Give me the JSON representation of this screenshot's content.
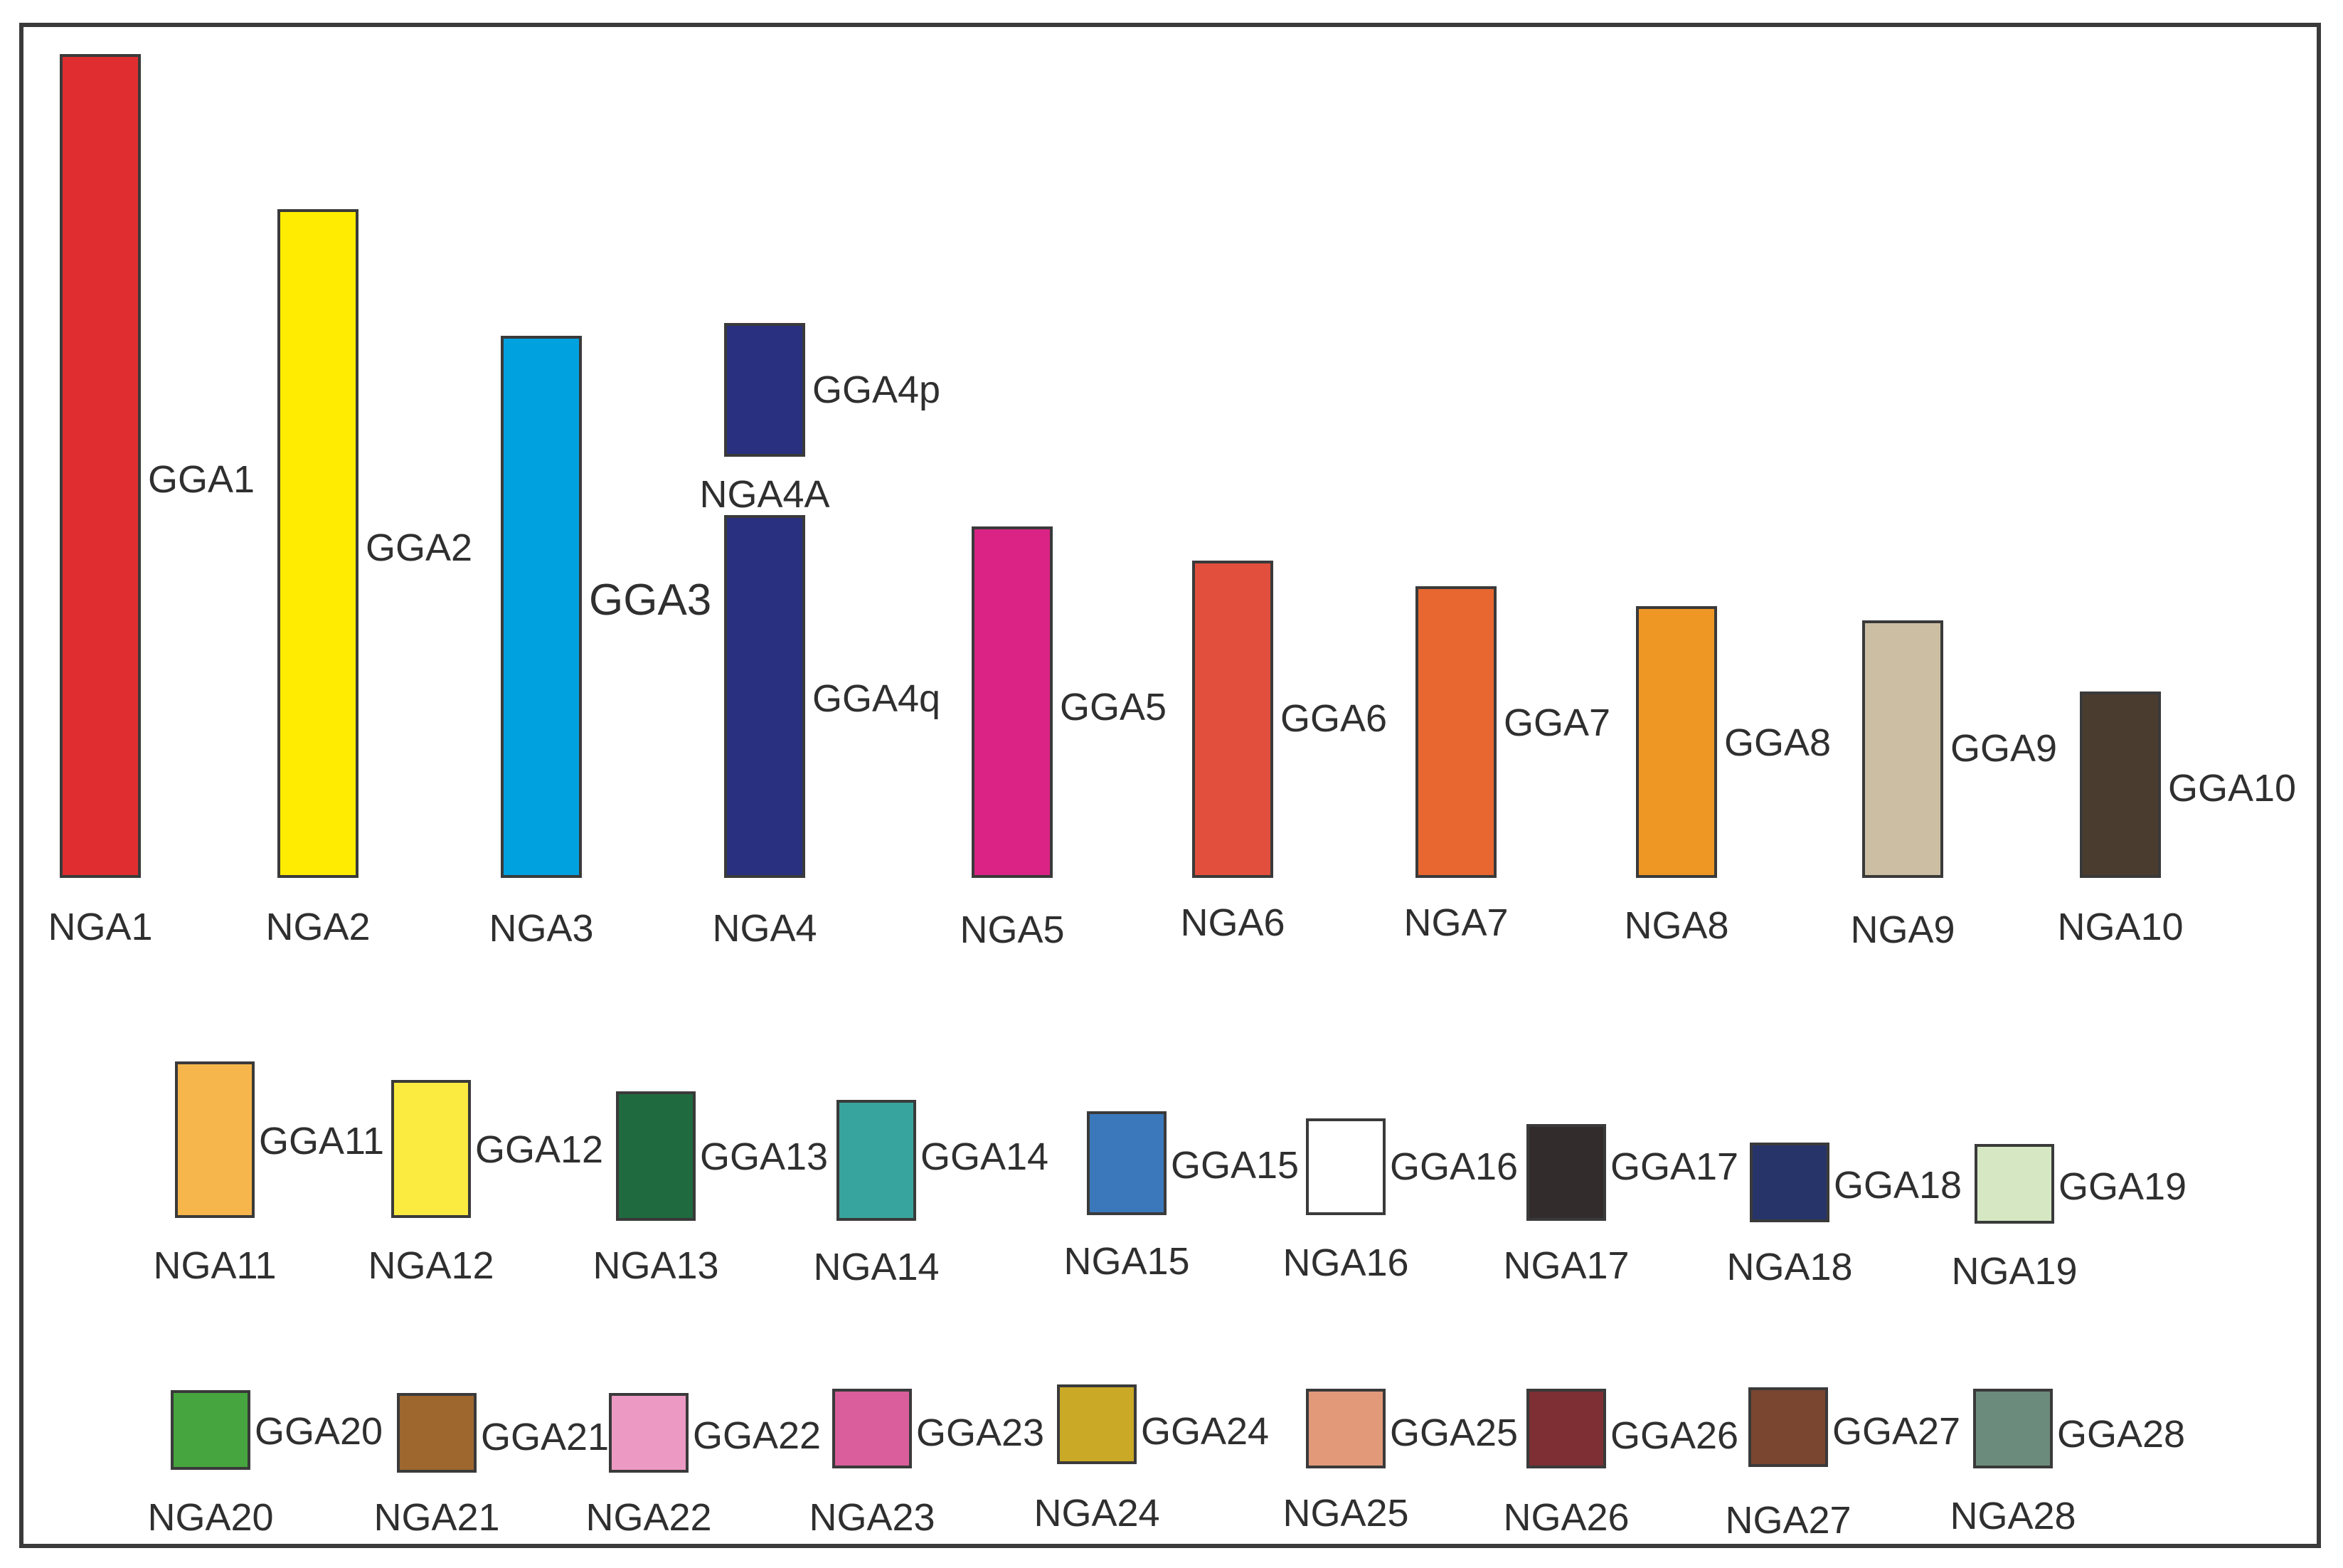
{
  "large_chromosomes": [
    {
      "nga": "NGA1",
      "gga": "GGA1",
      "color": "#e02e30"
    },
    {
      "nga": "NGA2",
      "gga": "GGA2",
      "color": "#ffec00"
    },
    {
      "nga": "NGA3",
      "gga": "GGA3",
      "color": "#00a1df"
    },
    {
      "nga": "NGA4",
      "gga": "GGA4q",
      "color": "#29307f"
    },
    {
      "nga": "NGA5",
      "gga": "GGA5",
      "color": "#da2385"
    },
    {
      "nga": "NGA6",
      "gga": "GGA6",
      "color": "#e24f3d"
    },
    {
      "nga": "NGA7",
      "gga": "GGA7",
      "color": "#e86730"
    },
    {
      "nga": "NGA8",
      "gga": "GGA8",
      "color": "#ef9724"
    },
    {
      "nga": "NGA9",
      "gga": "GGA9",
      "color": "#cbbea3"
    },
    {
      "nga": "NGA10",
      "gga": "GGA10",
      "color": "#4a3c2f"
    }
  ],
  "extra_chromosome": {
    "nga": "NGA4A",
    "gga": "GGA4p",
    "color": "#29307f"
  },
  "small_row_1": [
    {
      "nga": "NGA11",
      "gga": "GGA11",
      "color": "#f6b64c"
    },
    {
      "nga": "NGA12",
      "gga": "GGA12",
      "color": "#fbea40"
    },
    {
      "nga": "NGA13",
      "gga": "GGA13",
      "color": "#1f6b3f"
    },
    {
      "nga": "NGA14",
      "gga": "GGA14",
      "color": "#38a49e"
    },
    {
      "nga": "NGA15",
      "gga": "GGA15",
      "color": "#3b78bb"
    },
    {
      "nga": "NGA16",
      "gga": "GGA16",
      "color": "#ffffff"
    },
    {
      "nga": "NGA17",
      "gga": "GGA17",
      "color": "#322c2c"
    },
    {
      "nga": "NGA18",
      "gga": "GGA18",
      "color": "#27346a"
    },
    {
      "nga": "NGA19",
      "gga": "GGA19",
      "color": "#d5e8c3"
    }
  ],
  "small_row_2": [
    {
      "nga": "NGA20",
      "gga": "GGA20",
      "color": "#46a53e"
    },
    {
      "nga": "NGA21",
      "gga": "GGA21",
      "color": "#9d672e"
    },
    {
      "nga": "NGA22",
      "gga": "GGA22",
      "color": "#ec9ac4"
    },
    {
      "nga": "NGA23",
      "gga": "GGA23",
      "color": "#d95e9b"
    },
    {
      "nga": "NGA24",
      "gga": "GGA24",
      "color": "#c9a926"
    },
    {
      "nga": "NGA25",
      "gga": "GGA25",
      "color": "#e1997a"
    },
    {
      "nga": "NGA26",
      "gga": "GGA26",
      "color": "#7d2f33"
    },
    {
      "nga": "NGA27",
      "gga": "GGA27",
      "color": "#7a4630"
    },
    {
      "nga": "NGA28",
      "gga": "GGA28",
      "color": "#6b8c7c"
    }
  ]
}
